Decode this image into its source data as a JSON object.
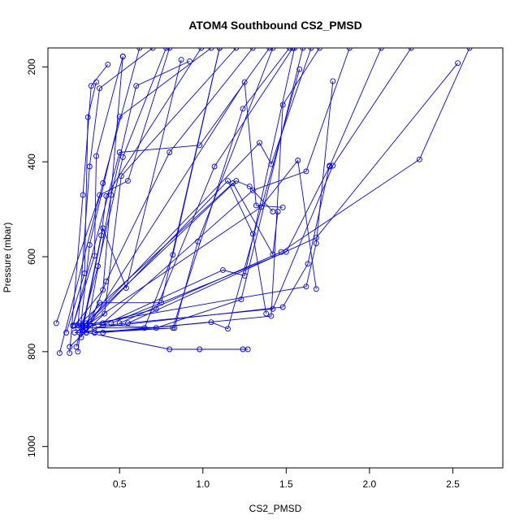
{
  "chart_data": {
    "type": "line",
    "title": "ATOM4 Southbound CS2_PMSD",
    "xlabel": "CS2_PMSD",
    "ylabel": "Pressure (mbar)",
    "xlim": [
      0.07,
      2.8
    ],
    "ylim": [
      1045,
      160
    ],
    "y_inverted": true,
    "x_ticks": [
      0.5,
      1.0,
      1.5,
      2.0,
      2.5
    ],
    "x_tick_labels": [
      "0.5",
      "1.0",
      "1.5",
      "2.0",
      "2.5"
    ],
    "y_ticks": [
      200,
      400,
      600,
      800,
      1000
    ],
    "y_tick_labels": [
      "200",
      "400",
      "600",
      "800",
      "1000"
    ],
    "grid": false,
    "legend": "none",
    "color": "#0000ff",
    "marker": "open-circle",
    "series": [
      {
        "x": [
          0.3,
          0.45,
          0.6,
          0.92
        ],
        "y": [
          760,
          470,
          240,
          188
        ]
      },
      {
        "x": [
          0.25,
          0.32,
          0.5,
          1.05
        ],
        "y": [
          800,
          575,
          305,
          160
        ]
      },
      {
        "x": [
          0.2,
          0.28,
          0.33,
          0.43
        ],
        "y": [
          803,
          470,
          240,
          195
        ]
      },
      {
        "x": [
          0.14,
          0.4,
          0.62
        ],
        "y": [
          803,
          445,
          160
        ]
      },
      {
        "x": [
          0.12,
          0.38,
          0.55,
          0.8
        ],
        "y": [
          740,
          470,
          440,
          160
        ]
      },
      {
        "x": [
          0.22,
          0.35,
          0.36,
          0.52
        ],
        "y": [
          745,
          598,
          388,
          178
        ]
      },
      {
        "x": [
          0.25,
          0.32,
          0.38,
          0.7
        ],
        "y": [
          750,
          410,
          245,
          160
        ]
      },
      {
        "x": [
          0.27,
          0.4,
          0.54,
          0.87
        ],
        "y": [
          770,
          540,
          666,
          185
        ]
      },
      {
        "x": [
          0.24,
          0.37,
          0.52,
          0.78
        ],
        "y": [
          790,
          620,
          390,
          160
        ]
      },
      {
        "x": [
          0.18,
          0.29,
          0.31,
          0.36
        ],
        "y": [
          760,
          635,
          306,
          232
        ]
      },
      {
        "x": [
          0.23,
          0.4,
          0.52
        ],
        "y": [
          745,
          670,
          178
        ]
      },
      {
        "x": [
          0.28,
          0.39,
          0.42,
          0.99
        ],
        "y": [
          745,
          555,
          472,
          160
        ]
      },
      {
        "x": [
          0.2,
          0.41,
          0.51,
          1.2
        ],
        "y": [
          790,
          720,
          430,
          160
        ]
      },
      {
        "x": [
          0.26,
          0.38,
          0.75,
          1.1
        ],
        "y": [
          760,
          697,
          697,
          160
        ]
      },
      {
        "x": [
          0.3,
          0.42,
          0.8,
          1.3
        ],
        "y": [
          760,
          652,
          380,
          160
        ]
      },
      {
        "x": [
          0.22,
          0.5,
          0.98,
          1.4
        ],
        "y": [
          746,
          380,
          365,
          160
        ]
      },
      {
        "x": [
          0.28,
          0.72,
          1.07,
          1.54
        ],
        "y": [
          750,
          710,
          410,
          160
        ]
      },
      {
        "x": [
          0.3,
          0.65,
          0.82,
          1.1
        ],
        "y": [
          750,
          750,
          596,
          160
        ]
      },
      {
        "x": [
          0.35,
          0.83,
          0.97,
          1.42
        ],
        "y": [
          760,
          750,
          568,
          160
        ]
      },
      {
        "x": [
          0.26,
          0.72,
          1.23,
          1.6
        ],
        "y": [
          740,
          750,
          690,
          160
        ]
      },
      {
        "x": [
          0.23,
          0.82,
          1.24,
          1.52
        ],
        "y": [
          760,
          750,
          288,
          160
        ]
      },
      {
        "x": [
          0.28,
          0.8,
          0.98,
          1.24,
          1.27
        ],
        "y": [
          758,
          795,
          795,
          795,
          795
        ]
      },
      {
        "x": [
          0.35,
          1.05,
          1.15,
          1.58
        ],
        "y": [
          760,
          738,
          752,
          205
        ]
      },
      {
        "x": [
          0.3,
          1.12,
          1.25,
          1.55
        ],
        "y": [
          760,
          628,
          640,
          160
        ]
      },
      {
        "x": [
          0.28,
          1.15,
          1.3,
          1.38
        ],
        "y": [
          755,
          440,
          552,
          720
        ]
      },
      {
        "x": [
          0.27,
          1.2,
          1.28,
          1.42
        ],
        "y": [
          750,
          440,
          452,
          505
        ]
      },
      {
        "x": [
          0.25,
          1.18,
          1.42,
          1.45
        ],
        "y": [
          745,
          445,
          595,
          505
        ]
      },
      {
        "x": [
          0.32,
          1.25,
          1.32,
          1.48
        ],
        "y": [
          742,
          232,
          492,
          496
        ]
      },
      {
        "x": [
          0.4,
          1.41,
          1.48,
          1.7
        ],
        "y": [
          760,
          725,
          280,
          160
        ]
      },
      {
        "x": [
          0.3,
          1.34,
          1.41,
          1.65
        ],
        "y": [
          740,
          360,
          405,
          160
        ]
      },
      {
        "x": [
          0.32,
          1.62,
          1.68,
          1.78
        ],
        "y": [
          742,
          663,
          572,
          230
        ]
      },
      {
        "x": [
          0.3,
          1.35,
          1.57,
          1.68
        ],
        "y": [
          745,
          495,
          397,
          668
        ]
      },
      {
        "x": [
          0.35,
          1.48,
          1.63,
          1.76
        ],
        "y": [
          750,
          706,
          615,
          408
        ]
      },
      {
        "x": [
          0.4,
          1.3,
          1.62,
          1.88
        ],
        "y": [
          740,
          460,
          420,
          160
        ]
      },
      {
        "x": [
          0.4,
          1.42,
          1.78,
          2.25
        ],
        "y": [
          745,
          710,
          408,
          160
        ]
      },
      {
        "x": [
          0.45,
          1.5,
          1.76,
          2.07
        ],
        "y": [
          740,
          590,
          410,
          160
        ]
      },
      {
        "x": [
          0.5,
          1.47,
          2.3,
          2.6
        ],
        "y": [
          740,
          590,
          395,
          160
        ]
      },
      {
        "x": [
          0.55,
          1.68,
          2.53
        ],
        "y": [
          740,
          560,
          192
        ]
      }
    ]
  }
}
